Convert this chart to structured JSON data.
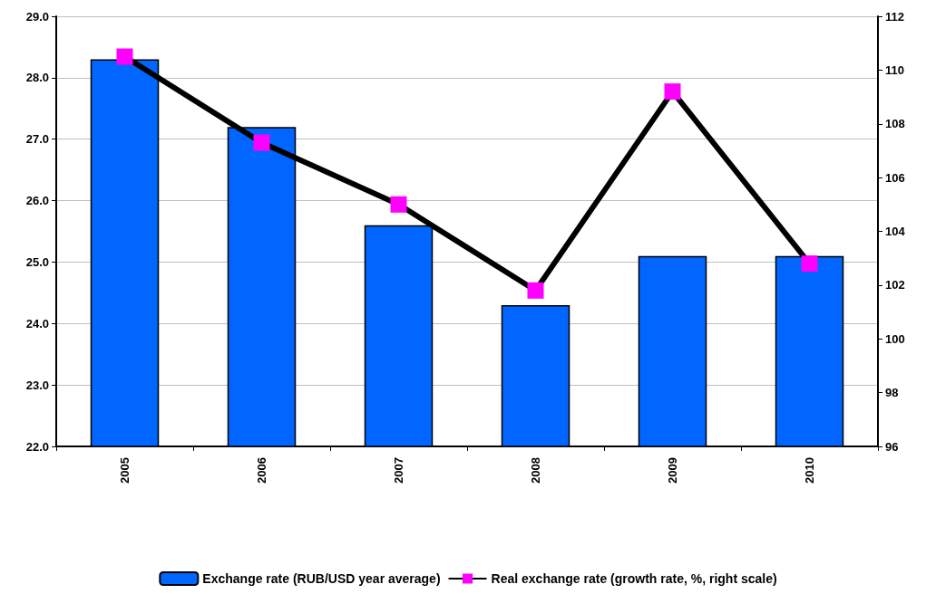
{
  "chart_data": {
    "type": "bar",
    "categories": [
      "2005",
      "2006",
      "2007",
      "2008",
      "2009",
      "2010"
    ],
    "series": [
      {
        "name": "Exchange rate (RUB/USD year average)",
        "color": "#0066ff",
        "values": [
          28.3,
          27.2,
          25.6,
          24.3,
          25.1,
          25.1
        ]
      },
      {
        "name": "Real exchange rate (growth rate, %, right scale)",
        "type": "line",
        "axis": "y2",
        "color": "#000000",
        "marker": "square",
        "values": [
          110.5,
          107.3,
          105.0,
          101.8,
          109.2,
          102.8
        ]
      }
    ],
    "ylim": [
      22,
      29
    ],
    "yticks": [
      {
        "value": 22,
        "label": "22.0"
      },
      {
        "value": 23,
        "label": "23.0"
      },
      {
        "value": 24,
        "label": "24.0"
      },
      {
        "value": 25,
        "label": "25.0"
      },
      {
        "value": 26,
        "label": "26.0"
      },
      {
        "value": 27,
        "label": "27.0"
      },
      {
        "value": 28,
        "label": "28.0"
      },
      {
        "value": 29,
        "label": "29.0"
      }
    ],
    "y2lim": [
      96,
      112
    ],
    "y2ticks": [
      96,
      98,
      100,
      102,
      104,
      106,
      108,
      110,
      112
    ],
    "grid": "y",
    "legend": "bottom"
  }
}
